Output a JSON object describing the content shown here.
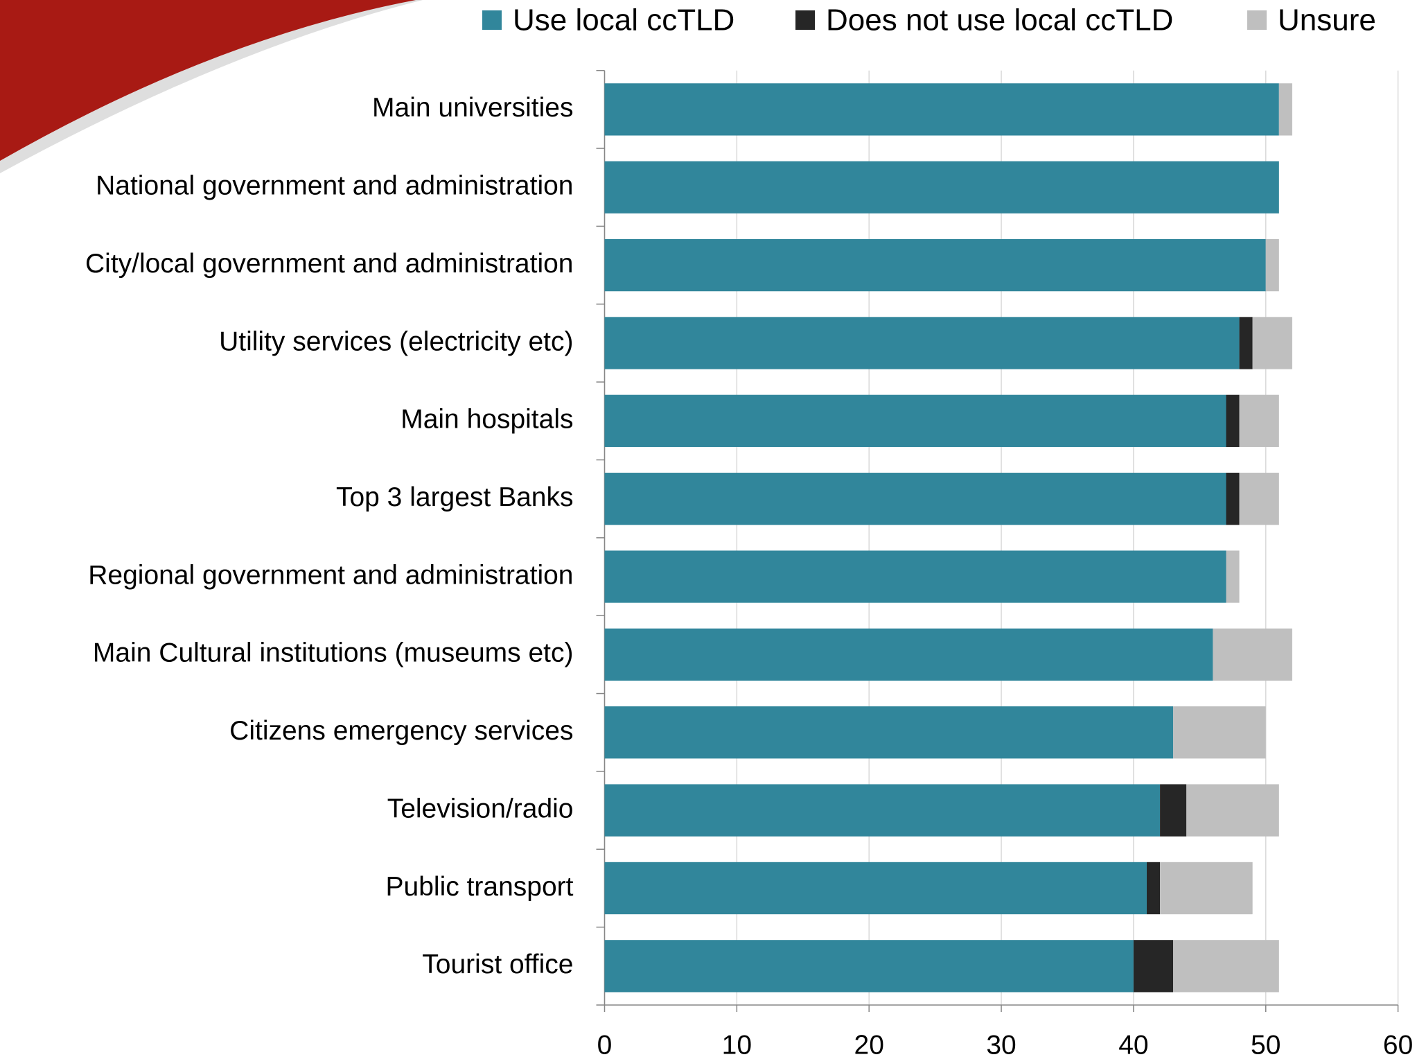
{
  "chart_data": {
    "type": "stacked_bar_horizontal",
    "categories": [
      "Main universities",
      "National government and administration",
      "City/local government and administration",
      "Utility services (electricity etc)",
      "Main hospitals",
      "Top 3 largest Banks",
      "Regional government and administration",
      "Main Cultural institutions (museums etc)",
      "Citizens emergency services",
      "Television/radio",
      "Public transport",
      "Tourist office"
    ],
    "series": [
      {
        "name": "Use local ccTLD",
        "color": "#31869b",
        "values": [
          51,
          51,
          50,
          48,
          47,
          47,
          47,
          46,
          43,
          42,
          41,
          40
        ]
      },
      {
        "name": "Does not use local ccTLD",
        "color": "#262626",
        "values": [
          0,
          0,
          0,
          1,
          1,
          1,
          0,
          0,
          0,
          2,
          1,
          3
        ]
      },
      {
        "name": "Unsure",
        "color": "#bfbfbf",
        "values": [
          1,
          0,
          1,
          3,
          3,
          3,
          1,
          6,
          7,
          7,
          7,
          8
        ]
      }
    ],
    "xlim": [
      0,
      60
    ],
    "xticks": [
      0,
      10,
      20,
      30,
      40,
      50,
      60
    ],
    "grid": true,
    "legend": "top"
  }
}
